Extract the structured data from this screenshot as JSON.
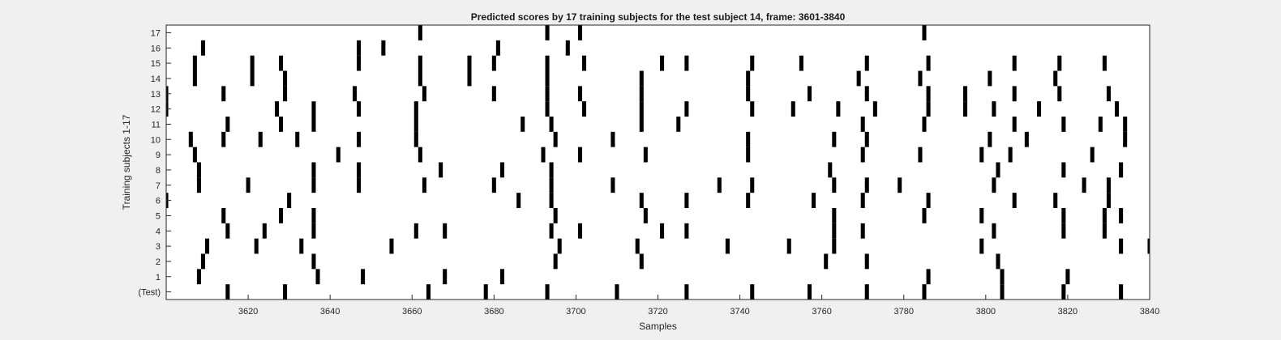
{
  "chart_data": {
    "type": "raster",
    "title": "Predicted scores by 17 training subjects for the test subject 14, frame: 3601-3840",
    "xlabel": "Samples",
    "ylabel": "Training subjects 1-17",
    "xlim": [
      3600,
      3840
    ],
    "x_ticks": [
      3620,
      3640,
      3660,
      3680,
      3700,
      3720,
      3740,
      3760,
      3780,
      3800,
      3820,
      3840
    ],
    "rows": [
      "(Test)",
      "1",
      "2",
      "3",
      "4",
      "5",
      "6",
      "7",
      "8",
      "9",
      "10",
      "11",
      "12",
      "13",
      "14",
      "15",
      "16",
      "17"
    ],
    "mark_width_samples": 1,
    "colors": {
      "mark": "#000000",
      "plot_bg": "#ffffff",
      "figure_bg": "#f0f0f0",
      "axis": "#262626"
    },
    "series": [
      {
        "name": "(Test)",
        "values": [
          3615,
          3629,
          3664,
          3678,
          3693,
          3710,
          3727,
          3743,
          3757,
          3771,
          3785,
          3804,
          3819,
          3833
        ]
      },
      {
        "name": "1",
        "values": [
          3608,
          3637,
          3648,
          3668,
          3682,
          3786,
          3804,
          3820
        ]
      },
      {
        "name": "2",
        "values": [
          3609,
          3636,
          3695,
          3716,
          3761,
          3771,
          3803
        ]
      },
      {
        "name": "3",
        "values": [
          3610,
          3622,
          3633,
          3655,
          3696,
          3715,
          3737,
          3752,
          3763,
          3799,
          3833,
          3840
        ]
      },
      {
        "name": "4",
        "values": [
          3615,
          3624,
          3636,
          3661,
          3668,
          3694,
          3701,
          3721,
          3727,
          3763,
          3770,
          3802,
          3819,
          3829
        ]
      },
      {
        "name": "5",
        "values": [
          3614,
          3628,
          3636,
          3695,
          3717,
          3763,
          3785,
          3799,
          3819,
          3829,
          3833
        ]
      },
      {
        "name": "6",
        "values": [
          3600,
          3630,
          3686,
          3694,
          3716,
          3727,
          3742,
          3758,
          3770,
          3786,
          3807,
          3817,
          3830
        ]
      },
      {
        "name": "7",
        "values": [
          3608,
          3620,
          3636,
          3647,
          3663,
          3680,
          3694,
          3709,
          3735,
          3743,
          3763,
          3771,
          3779,
          3802,
          3824,
          3830
        ]
      },
      {
        "name": "8",
        "values": [
          3608,
          3636,
          3647,
          3667,
          3682,
          3694,
          3762,
          3803,
          3819,
          3833
        ]
      },
      {
        "name": "9",
        "values": [
          3607,
          3642,
          3662,
          3692,
          3701,
          3717,
          3742,
          3770,
          3784,
          3799,
          3806,
          3826
        ]
      },
      {
        "name": "10",
        "values": [
          3606,
          3614,
          3623,
          3632,
          3647,
          3661,
          3695,
          3709,
          3742,
          3763,
          3771,
          3801,
          3810,
          3834
        ]
      },
      {
        "name": "11",
        "values": [
          3615,
          3628,
          3636,
          3661,
          3687,
          3694,
          3716,
          3725,
          3770,
          3785,
          3807,
          3819,
          3828,
          3834
        ]
      },
      {
        "name": "12",
        "values": [
          3600,
          3627,
          3636,
          3647,
          3661,
          3693,
          3702,
          3716,
          3727,
          3743,
          3753,
          3764,
          3773,
          3786,
          3795,
          3802,
          3813,
          3832
        ]
      },
      {
        "name": "13",
        "values": [
          3600,
          3614,
          3629,
          3646,
          3663,
          3680,
          3693,
          3701,
          3716,
          3742,
          3757,
          3771,
          3786,
          3795,
          3807,
          3818,
          3830
        ]
      },
      {
        "name": "14",
        "values": [
          3607,
          3621,
          3629,
          3662,
          3674,
          3693,
          3716,
          3742,
          3769,
          3784,
          3801,
          3817
        ]
      },
      {
        "name": "15",
        "values": [
          3607,
          3621,
          3628,
          3647,
          3662,
          3674,
          3680,
          3693,
          3702,
          3721,
          3727,
          3743,
          3755,
          3771,
          3786,
          3807,
          3818,
          3829
        ]
      },
      {
        "name": "16",
        "values": [
          3609,
          3647,
          3653,
          3681,
          3698
        ]
      },
      {
        "name": "17",
        "values": [
          3662,
          3693,
          3701,
          3785
        ]
      }
    ]
  }
}
